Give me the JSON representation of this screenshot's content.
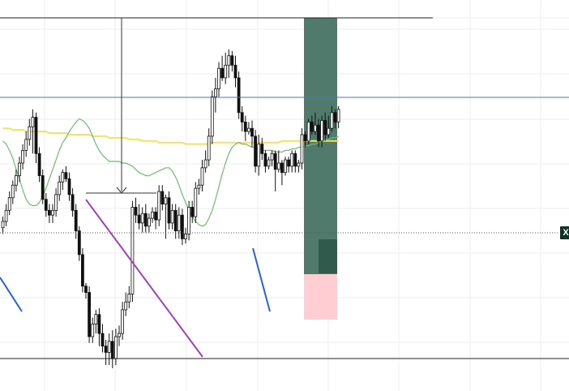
{
  "chart": {
    "price_label": "X",
    "colors": {
      "background": "#ffffff",
      "grid": "#eeeeee",
      "candle_bull_fill": "#ffffff",
      "candle_bear_fill": "#111111",
      "candle_outline": "#111111",
      "ma_slow": "#f2e35a",
      "ma_fast": "#6cbf6c",
      "trendline_purple": "#a040c0",
      "trendline_blue": "#2a60d8",
      "horizontal_blue": "#4a78b0",
      "horizontal_black": "#222222",
      "dotted_price_line": "#555555",
      "target_zone": "#4f7a6c",
      "stop_zone": "#ffcdd2",
      "position_entry_box": "#2f5a4c",
      "price_tag_bg": "#0d3326"
    }
  },
  "chart_data": {
    "type": "candlestick",
    "candles": [
      [
        337,
        341,
        333,
        344
      ],
      [
        341,
        348,
        338,
        352
      ],
      [
        348,
        356,
        345,
        360
      ],
      [
        356,
        364,
        352,
        367
      ],
      [
        364,
        370,
        360,
        374
      ],
      [
        370,
        378,
        366,
        382
      ],
      [
        378,
        386,
        374,
        390
      ],
      [
        386,
        393,
        382,
        398
      ],
      [
        393,
        401,
        389,
        406
      ],
      [
        401,
        407,
        384,
        412
      ],
      [
        407,
        384,
        378,
        410
      ],
      [
        384,
        370,
        366,
        388
      ],
      [
        370,
        355,
        352,
        374
      ],
      [
        355,
        348,
        344,
        359
      ],
      [
        348,
        345,
        340,
        352
      ],
      [
        345,
        348,
        340,
        352
      ],
      [
        348,
        358,
        344,
        362
      ],
      [
        358,
        366,
        354,
        370
      ],
      [
        366,
        372,
        361,
        374
      ],
      [
        372,
        368,
        366,
        376
      ],
      [
        368,
        358,
        354,
        372
      ],
      [
        358,
        348,
        344,
        362
      ],
      [
        348,
        335,
        330,
        352
      ],
      [
        335,
        320,
        316,
        338
      ],
      [
        320,
        300,
        296,
        324
      ],
      [
        300,
        296,
        292,
        302
      ],
      [
        296,
        268,
        264,
        300
      ],
      [
        268,
        276,
        264,
        280
      ],
      [
        276,
        282,
        270,
        285
      ],
      [
        282,
        270,
        262,
        286
      ],
      [
        270,
        262,
        258,
        276
      ],
      [
        262,
        258,
        250,
        266
      ],
      [
        258,
        265,
        250,
        270
      ],
      [
        265,
        254,
        248,
        272
      ],
      [
        254,
        268,
        250,
        273
      ],
      [
        268,
        270,
        262,
        275
      ],
      [
        270,
        285,
        266,
        290
      ],
      [
        285,
        290,
        281,
        296
      ],
      [
        290,
        295,
        286,
        300
      ],
      [
        295,
        350,
        290,
        354
      ],
      [
        350,
        345,
        340,
        356
      ],
      [
        345,
        340,
        336,
        352
      ],
      [
        340,
        346,
        334,
        350
      ],
      [
        346,
        338,
        334,
        352
      ],
      [
        338,
        343,
        334,
        346
      ],
      [
        343,
        347,
        340,
        350
      ],
      [
        347,
        342,
        336,
        350
      ],
      [
        342,
        360,
        338,
        364
      ],
      [
        360,
        352,
        348,
        364
      ],
      [
        352,
        356,
        330,
        358
      ],
      [
        356,
        340,
        336,
        360
      ],
      [
        340,
        348,
        336,
        352
      ],
      [
        348,
        335,
        330,
        352
      ],
      [
        335,
        345,
        330,
        350
      ],
      [
        345,
        330,
        326,
        349
      ],
      [
        330,
        333,
        327,
        337
      ],
      [
        333,
        350,
        329,
        354
      ],
      [
        350,
        344,
        340,
        354
      ],
      [
        344,
        362,
        340,
        366
      ],
      [
        362,
        364,
        358,
        368
      ],
      [
        364,
        375,
        360,
        380
      ],
      [
        375,
        380,
        372,
        386
      ],
      [
        380,
        395,
        376,
        400
      ],
      [
        395,
        420,
        390,
        424
      ],
      [
        420,
        425,
        410,
        432
      ],
      [
        425,
        438,
        420,
        442
      ],
      [
        438,
        432,
        430,
        446
      ],
      [
        432,
        440,
        428,
        448
      ],
      [
        440,
        446,
        432,
        450
      ],
      [
        446,
        440,
        436,
        449
      ],
      [
        440,
        432,
        426,
        446
      ],
      [
        432,
        410,
        406,
        436
      ],
      [
        410,
        404,
        398,
        414
      ],
      [
        404,
        398,
        392,
        408
      ],
      [
        398,
        400,
        396,
        404
      ],
      [
        400,
        395,
        388,
        405
      ],
      [
        395,
        376,
        372,
        399
      ],
      [
        376,
        390,
        370,
        396
      ],
      [
        390,
        384,
        380,
        394
      ],
      [
        384,
        376,
        372,
        386
      ],
      [
        376,
        380,
        374,
        382
      ],
      [
        380,
        384,
        376,
        386
      ],
      [
        384,
        374,
        360,
        386
      ],
      [
        374,
        378,
        372,
        386
      ],
      [
        378,
        372,
        364,
        380
      ],
      [
        372,
        380,
        370,
        382
      ],
      [
        380,
        376,
        372,
        382
      ],
      [
        376,
        384,
        372,
        386
      ],
      [
        384,
        376,
        372,
        386
      ],
      [
        376,
        378,
        372,
        380
      ],
      [
        378,
        396,
        374,
        400
      ],
      [
        396,
        392,
        388,
        398
      ],
      [
        392,
        404,
        390,
        406
      ],
      [
        404,
        398,
        396,
        408
      ],
      [
        398,
        402,
        396,
        410
      ],
      [
        402,
        392,
        388,
        406
      ],
      [
        392,
        405,
        388,
        408
      ],
      [
        405,
        396,
        392,
        410
      ],
      [
        396,
        400,
        394,
        408
      ],
      [
        400,
        410,
        398,
        414
      ],
      [
        410,
        404,
        400,
        412
      ],
      [
        404,
        412,
        400,
        414
      ]
    ],
    "ma_slow": [
      400,
      400,
      400,
      399,
      399,
      399,
      399,
      398,
      398,
      398,
      398,
      398,
      398,
      398,
      397,
      397,
      397,
      397,
      397,
      397,
      396,
      396,
      396,
      396,
      396,
      396,
      396,
      395,
      395,
      395,
      395,
      395,
      394,
      394,
      394,
      394,
      394,
      394,
      393,
      393,
      393,
      393,
      392,
      392,
      392,
      392,
      392,
      391,
      391,
      391,
      391,
      391,
      391,
      391,
      391,
      390,
      390,
      390,
      390,
      390,
      390,
      390,
      390,
      391,
      391,
      391,
      391,
      391,
      391,
      391,
      391,
      391,
      391,
      391,
      391,
      391,
      391,
      391,
      391,
      391,
      391,
      391,
      391,
      391,
      392,
      392,
      392,
      392,
      392,
      392,
      392,
      392,
      392,
      392,
      392,
      392,
      392,
      392,
      392,
      392,
      392,
      392
    ],
    "ma_fast": [
      392,
      390,
      386,
      381,
      374,
      368,
      361,
      355,
      352,
      351,
      351,
      353,
      357,
      362,
      368,
      374,
      380,
      386,
      391,
      394,
      398,
      401,
      404,
      406,
      405,
      403,
      400,
      395,
      390,
      386,
      383,
      381,
      379,
      379,
      379,
      379,
      378,
      378,
      377,
      376,
      374,
      372,
      371,
      370,
      370,
      371,
      372,
      373,
      374,
      375,
      375,
      373,
      369,
      364,
      358,
      353,
      348,
      344,
      341,
      339,
      338,
      339,
      343,
      348,
      355,
      363,
      371,
      378,
      384,
      388,
      390,
      391,
      390,
      390,
      389,
      388,
      388,
      387,
      386,
      386,
      386,
      386,
      385,
      385,
      385,
      386,
      386,
      387,
      387,
      388,
      388,
      389,
      389,
      390,
      390,
      391,
      392,
      393,
      393,
      394,
      394,
      395
    ]
  }
}
